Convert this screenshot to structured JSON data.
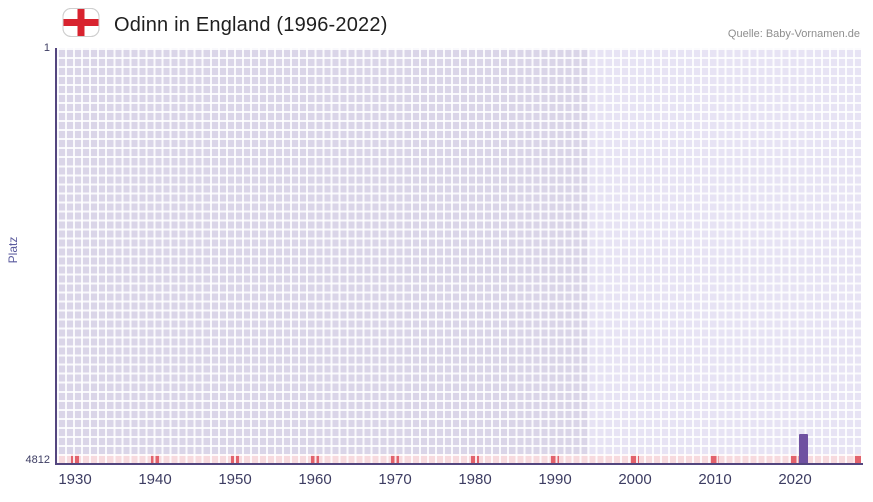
{
  "header": {
    "title": "Odinn in England (1996-2022)",
    "source": "Quelle: Baby-Vornamen.de",
    "flag_icon": "england-flag-icon"
  },
  "chart_data": {
    "type": "bar",
    "title": "Odinn in England (1996-2022)",
    "xlabel": "",
    "ylabel": "Platz",
    "y_tick_top": "1",
    "y_tick_bottom": "4812",
    "y_range": [
      1,
      4812
    ],
    "x_range": [
      1927.75,
      2028.25
    ],
    "x_ticks": [
      1930,
      1940,
      1950,
      1960,
      1970,
      1980,
      1990,
      2000,
      2010,
      2020
    ],
    "series": [
      {
        "name": "Odinn",
        "points": [
          {
            "year": 2021,
            "rank": 4476
          }
        ]
      }
    ],
    "highlight_period": [
      1994,
      2028.25
    ],
    "decade_markers": [
      1930,
      1940,
      1950,
      1960,
      1970,
      1980,
      1990,
      2000,
      2010,
      2020,
      2028
    ],
    "grid": true,
    "legend_position": "none",
    "bar_color": "#6f51a1",
    "plot_bg_base": "#dad5e8",
    "plot_bg_highlight": "#e7e3f4",
    "bottom_band_color": "#f7dade",
    "decade_marker_color": "#e2626c",
    "axis_color": "#54467f"
  }
}
